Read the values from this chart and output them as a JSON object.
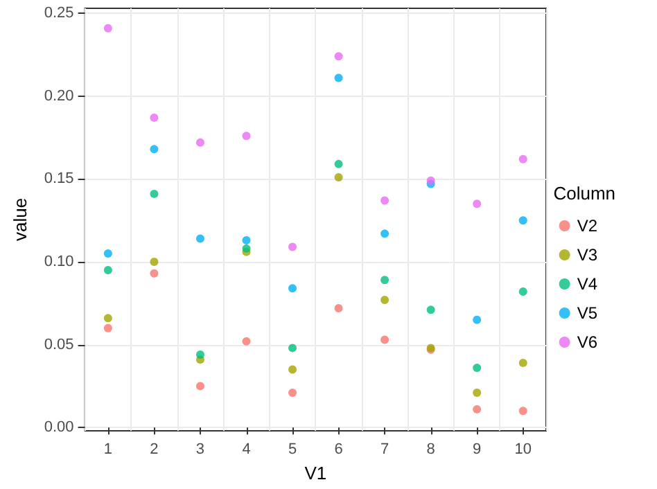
{
  "chart_data": {
    "type": "scatter",
    "xlabel": "V1",
    "ylabel": "value",
    "legend_title": "Column",
    "categories": [
      "1",
      "2",
      "3",
      "4",
      "5",
      "6",
      "7",
      "8",
      "9",
      "10"
    ],
    "series": [
      {
        "name": "V2",
        "color": "#f8766d",
        "values": [
          0.06,
          0.093,
          0.025,
          0.052,
          0.021,
          0.072,
          0.053,
          0.047,
          0.011,
          0.01
        ]
      },
      {
        "name": "V3",
        "color": "#a3a500",
        "values": [
          0.066,
          0.1,
          0.041,
          0.106,
          0.035,
          0.151,
          0.077,
          0.048,
          0.021,
          0.039
        ]
      },
      {
        "name": "V4",
        "color": "#00bf7d",
        "values": [
          0.095,
          0.141,
          0.044,
          0.108,
          0.048,
          0.159,
          0.089,
          0.071,
          0.036,
          0.082
        ]
      },
      {
        "name": "V5",
        "color": "#00b0f6",
        "values": [
          0.105,
          0.168,
          0.114,
          0.113,
          0.084,
          0.211,
          0.117,
          0.147,
          0.065,
          0.125
        ]
      },
      {
        "name": "V6",
        "color": "#e76bf3",
        "values": [
          0.241,
          0.187,
          0.172,
          0.176,
          0.109,
          0.224,
          0.137,
          0.149,
          0.135,
          0.162
        ]
      }
    ],
    "ylim": [
      -0.002,
      0.253
    ],
    "yticks": [
      {
        "value": 0,
        "label": "0.00"
      },
      0.05,
      {
        "value": 0.1,
        "label": "0.10"
      },
      0.15,
      {
        "value": 0.2,
        "label": "0.20"
      },
      0.25
    ],
    "grid": true,
    "legend": "right",
    "marker": "circle"
  }
}
